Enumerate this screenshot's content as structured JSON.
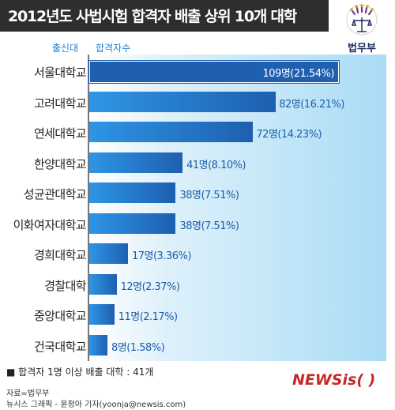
{
  "title": "2012년도 사법시험 합격자 배출 상위 10개 대학",
  "logo": {
    "text": "법무부"
  },
  "chart_data": {
    "type": "bar",
    "orientation": "horizontal",
    "column_headers": [
      "출신대",
      "합격자수"
    ],
    "categories": [
      "서울대학교",
      "고려대학교",
      "연세대학교",
      "한양대학교",
      "성균관대학교",
      "이화여자대학교",
      "경희대학교",
      "경찰대학",
      "중앙대학교",
      "건국대학교"
    ],
    "values": [
      109,
      82,
      72,
      41,
      38,
      38,
      17,
      12,
      11,
      8
    ],
    "data_labels": [
      "109명(21.54%)",
      "82명(16.21%)",
      "72명(14.23%)",
      "41명(8.10%)",
      "38명(7.51%)",
      "38명(7.51%)",
      "17명(3.36%)",
      "12명(2.37%)",
      "11명(2.17%)",
      "8명(1.58%)"
    ],
    "xlim": [
      0,
      109
    ],
    "grid": false,
    "legend": "none"
  },
  "footer": {
    "note": "합격자 1명 이상 배출 대학 : 41개",
    "source": "자료=법무부",
    "credit": "뉴시스 그래픽 - 윤정아 기자(yoonja@newsis.com)",
    "brand": "NEWSis( )"
  },
  "colors": {
    "title_bg": "#2e2e2e",
    "bar_dark": "#1e5fb0",
    "bar_light": "#2f95e5",
    "label": "#1b5fa9",
    "header": "#1f7fd0",
    "brand": "#c62828"
  }
}
